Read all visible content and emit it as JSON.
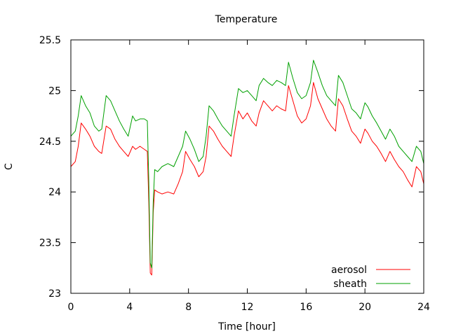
{
  "chart_data": {
    "type": "line",
    "title": "Temperature",
    "xlabel": "Time [hour]",
    "ylabel": "C",
    "xlim": [
      0,
      24
    ],
    "ylim": [
      23,
      25.5
    ],
    "x_ticks": [
      0,
      4,
      8,
      12,
      16,
      20,
      24
    ],
    "y_ticks": [
      23,
      23.5,
      24,
      24.5,
      25,
      25.5
    ],
    "x_tick_labels": [
      "0",
      "4",
      "8",
      "12",
      "16",
      "20",
      "24"
    ],
    "y_tick_labels": [
      "23",
      "23.5",
      "24",
      "24.5",
      "25",
      "25.5"
    ],
    "grid": false,
    "legend_position": "bottom-right",
    "x": [
      0,
      0.3,
      0.5,
      0.7,
      1.0,
      1.3,
      1.6,
      1.9,
      2.1,
      2.4,
      2.7,
      3.0,
      3.3,
      3.6,
      3.9,
      4.2,
      4.4,
      4.7,
      5.0,
      5.2,
      5.3,
      5.4,
      5.5,
      5.6,
      5.7,
      5.9,
      6.2,
      6.6,
      7.0,
      7.3,
      7.6,
      7.8,
      8.1,
      8.4,
      8.7,
      9.0,
      9.2,
      9.4,
      9.7,
      10.0,
      10.3,
      10.6,
      10.9,
      11.1,
      11.4,
      11.7,
      12.0,
      12.3,
      12.6,
      12.8,
      13.1,
      13.4,
      13.7,
      14.0,
      14.3,
      14.6,
      14.8,
      15.1,
      15.4,
      15.7,
      16.0,
      16.3,
      16.5,
      16.8,
      17.1,
      17.4,
      17.7,
      18.0,
      18.2,
      18.5,
      18.8,
      19.1,
      19.4,
      19.7,
      20.0,
      20.2,
      20.5,
      20.8,
      21.1,
      21.4,
      21.7,
      22.0,
      22.3,
      22.6,
      22.9,
      23.2,
      23.5,
      23.8,
      24.0
    ],
    "series": [
      {
        "name": "aerosol",
        "color": "#ff0000",
        "values": [
          24.25,
          24.3,
          24.45,
          24.68,
          24.62,
          24.55,
          24.45,
          24.4,
          24.38,
          24.65,
          24.62,
          24.52,
          24.45,
          24.4,
          24.35,
          24.45,
          24.42,
          24.45,
          24.42,
          24.4,
          23.9,
          23.2,
          23.18,
          23.8,
          24.02,
          24.0,
          23.98,
          24.0,
          23.98,
          24.08,
          24.2,
          24.4,
          24.32,
          24.25,
          24.15,
          24.2,
          24.35,
          24.65,
          24.6,
          24.52,
          24.45,
          24.4,
          24.35,
          24.55,
          24.8,
          24.72,
          24.78,
          24.7,
          24.65,
          24.78,
          24.9,
          24.85,
          24.8,
          24.85,
          24.82,
          24.8,
          25.05,
          24.9,
          24.75,
          24.68,
          24.72,
          24.85,
          25.08,
          24.92,
          24.82,
          24.72,
          24.65,
          24.6,
          24.92,
          24.85,
          24.72,
          24.6,
          24.55,
          24.48,
          24.62,
          24.58,
          24.5,
          24.45,
          24.38,
          24.3,
          24.4,
          24.32,
          24.25,
          24.2,
          24.12,
          24.05,
          24.25,
          24.2,
          24.08
        ]
      },
      {
        "name": "sheath",
        "color": "#00a000",
        "values": [
          24.55,
          24.6,
          24.75,
          24.95,
          24.85,
          24.78,
          24.65,
          24.6,
          24.62,
          24.95,
          24.9,
          24.8,
          24.7,
          24.62,
          24.55,
          24.75,
          24.7,
          24.72,
          24.72,
          24.7,
          24.1,
          23.3,
          23.25,
          23.9,
          24.22,
          24.2,
          24.25,
          24.28,
          24.25,
          24.35,
          24.45,
          24.6,
          24.52,
          24.42,
          24.3,
          24.35,
          24.55,
          24.85,
          24.8,
          24.72,
          24.65,
          24.6,
          24.55,
          24.75,
          25.02,
          24.98,
          25.0,
          24.95,
          24.9,
          25.05,
          25.12,
          25.08,
          25.05,
          25.1,
          25.08,
          25.05,
          25.28,
          25.12,
          24.98,
          24.92,
          24.95,
          25.08,
          25.3,
          25.18,
          25.05,
          24.95,
          24.9,
          24.85,
          25.15,
          25.08,
          24.95,
          24.82,
          24.78,
          24.72,
          24.88,
          24.84,
          24.75,
          24.68,
          24.6,
          24.52,
          24.62,
          24.55,
          24.45,
          24.4,
          24.35,
          24.3,
          24.45,
          24.4,
          24.28
        ]
      }
    ]
  }
}
